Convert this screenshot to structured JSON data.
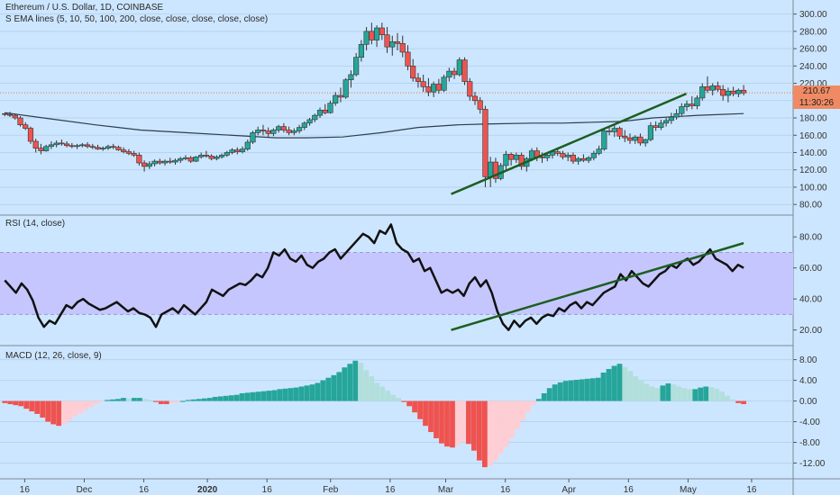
{
  "header": {
    "symbol_title": "Ethereum / U.S. Dollar, 1D, COINBASE",
    "ema_legend": "S EMA lines (5, 10, 50, 100, 200, close, close, close, close, close)",
    "rsi_legend": "RSI (14, close)",
    "macd_legend": "MACD (12, 26, close, 9)"
  },
  "price_badges": {
    "last_price": "210.67",
    "countdown": "11:30:26"
  },
  "colors": {
    "background": "#cde6ff",
    "up": "#26a69a",
    "down": "#ef5350",
    "trendline": "#1b5e20",
    "rsi_band": "#c6c6ff",
    "macd_neg_light": "#ffcdd2",
    "macd_pos_light": "#b2dfdb"
  },
  "x_axis_labels": [
    "16",
    "Dec",
    "16",
    "2020",
    "16",
    "Feb",
    "16",
    "Mar",
    "16",
    "Apr",
    "16",
    "May",
    "16"
  ],
  "chart_data": [
    {
      "type": "candlestick",
      "title": "Ethereum / U.S. Dollar, 1D, COINBASE",
      "y_ticks": [
        "300.00",
        "280.00",
        "260.00",
        "240.00",
        "220.00",
        "200.00",
        "180.00",
        "160.00",
        "140.00",
        "120.00",
        "100.00",
        "80.00"
      ],
      "ylim": [
        75,
        310
      ],
      "x_start": "2019-11-11",
      "x_days": 186,
      "ohlc": [
        [
          185,
          186,
          182,
          184
        ],
        [
          184,
          187,
          181,
          183
        ],
        [
          183,
          185,
          178,
          180
        ],
        [
          180,
          182,
          170,
          172
        ],
        [
          172,
          175,
          166,
          168
        ],
        [
          168,
          170,
          150,
          153
        ],
        [
          153,
          156,
          140,
          145
        ],
        [
          145,
          150,
          138,
          142
        ],
        [
          142,
          149,
          141,
          147
        ],
        [
          147,
          153,
          144,
          149
        ],
        [
          149,
          154,
          146,
          151
        ],
        [
          151,
          155,
          148,
          150
        ],
        [
          150,
          153,
          146,
          148
        ],
        [
          148,
          151,
          145,
          147
        ],
        [
          147,
          150,
          144,
          148
        ],
        [
          148,
          151,
          146,
          149
        ],
        [
          149,
          152,
          145,
          147
        ],
        [
          147,
          150,
          144,
          146
        ],
        [
          146,
          149,
          143,
          144
        ],
        [
          144,
          147,
          142,
          145
        ],
        [
          145,
          149,
          143,
          147
        ],
        [
          147,
          150,
          144,
          146
        ],
        [
          146,
          148,
          142,
          143
        ],
        [
          143,
          146,
          139,
          141
        ],
        [
          141,
          144,
          137,
          139
        ],
        [
          139,
          142,
          135,
          137
        ],
        [
          137,
          140,
          125,
          128
        ],
        [
          128,
          131,
          118,
          124
        ],
        [
          124,
          130,
          121,
          127
        ],
        [
          127,
          132,
          124,
          130
        ],
        [
          130,
          133,
          126,
          128
        ],
        [
          128,
          132,
          125,
          130
        ],
        [
          130,
          134,
          127,
          129
        ],
        [
          129,
          133,
          126,
          131
        ],
        [
          131,
          135,
          128,
          133
        ],
        [
          133,
          137,
          131,
          134
        ],
        [
          134,
          136,
          128,
          130
        ],
        [
          130,
          136,
          129,
          135
        ],
        [
          135,
          140,
          133,
          137
        ],
        [
          137,
          142,
          134,
          136
        ],
        [
          136,
          138,
          131,
          133
        ],
        [
          133,
          137,
          131,
          135
        ],
        [
          135,
          139,
          133,
          137
        ],
        [
          137,
          142,
          135,
          140
        ],
        [
          140,
          145,
          138,
          143
        ],
        [
          143,
          146,
          138,
          141
        ],
        [
          141,
          147,
          139,
          144
        ],
        [
          144,
          155,
          142,
          152
        ],
        [
          152,
          165,
          150,
          163
        ],
        [
          163,
          170,
          160,
          166
        ],
        [
          166,
          172,
          160,
          165
        ],
        [
          165,
          169,
          158,
          162
        ],
        [
          162,
          168,
          159,
          166
        ],
        [
          166,
          172,
          163,
          170
        ],
        [
          170,
          174,
          163,
          166
        ],
        [
          166,
          170,
          160,
          163
        ],
        [
          163,
          168,
          160,
          165
        ],
        [
          165,
          172,
          162,
          169
        ],
        [
          169,
          176,
          166,
          174
        ],
        [
          174,
          180,
          171,
          178
        ],
        [
          178,
          185,
          175,
          183
        ],
        [
          183,
          192,
          180,
          189
        ],
        [
          189,
          196,
          184,
          186
        ],
        [
          186,
          200,
          185,
          197
        ],
        [
          197,
          210,
          194,
          206
        ],
        [
          206,
          215,
          198,
          204
        ],
        [
          204,
          226,
          202,
          224
        ],
        [
          224,
          235,
          215,
          230
        ],
        [
          230,
          255,
          228,
          250
        ],
        [
          250,
          270,
          245,
          265
        ],
        [
          265,
          285,
          258,
          280
        ],
        [
          280,
          290,
          265,
          270
        ],
        [
          270,
          287,
          262,
          284
        ],
        [
          284,
          290,
          270,
          276
        ],
        [
          276,
          285,
          255,
          262
        ],
        [
          262,
          275,
          252,
          268
        ],
        [
          268,
          278,
          258,
          266
        ],
        [
          266,
          275,
          250,
          256
        ],
        [
          256,
          264,
          235,
          240
        ],
        [
          240,
          248,
          222,
          226
        ],
        [
          226,
          232,
          215,
          222
        ],
        [
          222,
          230,
          210,
          216
        ],
        [
          216,
          226,
          205,
          210
        ],
        [
          210,
          222,
          204,
          219
        ],
        [
          219,
          225,
          208,
          212
        ],
        [
          212,
          230,
          210,
          227
        ],
        [
          227,
          238,
          222,
          234
        ],
        [
          234,
          238,
          225,
          230
        ],
        [
          230,
          250,
          228,
          247
        ],
        [
          247,
          250,
          218,
          222
        ],
        [
          222,
          226,
          200,
          205
        ],
        [
          205,
          210,
          195,
          200
        ],
        [
          200,
          204,
          185,
          190
        ],
        [
          190,
          194,
          100,
          112
        ],
        [
          112,
          135,
          100,
          129
        ],
        [
          129,
          134,
          105,
          110
        ],
        [
          110,
          128,
          108,
          125
        ],
        [
          125,
          142,
          120,
          138
        ],
        [
          138,
          140,
          125,
          132
        ],
        [
          132,
          140,
          128,
          137
        ],
        [
          137,
          140,
          120,
          124
        ],
        [
          124,
          135,
          118,
          133
        ],
        [
          133,
          145,
          130,
          142
        ],
        [
          142,
          146,
          130,
          135
        ],
        [
          135,
          140,
          128,
          134
        ],
        [
          134,
          140,
          130,
          137
        ],
        [
          137,
          143,
          133,
          141
        ],
        [
          141,
          146,
          136,
          139
        ],
        [
          139,
          142,
          132,
          135
        ],
        [
          135,
          140,
          130,
          137
        ],
        [
          137,
          140,
          127,
          130
        ],
        [
          130,
          135,
          126,
          133
        ],
        [
          133,
          138,
          129,
          131
        ],
        [
          131,
          136,
          128,
          134
        ],
        [
          134,
          142,
          131,
          139
        ],
        [
          139,
          148,
          137,
          144
        ],
        [
          144,
          168,
          142,
          165
        ],
        [
          165,
          170,
          160,
          164
        ],
        [
          164,
          172,
          158,
          168
        ],
        [
          168,
          170,
          155,
          159
        ],
        [
          159,
          166,
          152,
          157
        ],
        [
          157,
          162,
          150,
          154
        ],
        [
          154,
          160,
          150,
          158
        ],
        [
          158,
          162,
          148,
          151
        ],
        [
          151,
          156,
          147,
          155
        ],
        [
          155,
          175,
          153,
          171
        ],
        [
          171,
          176,
          165,
          169
        ],
        [
          169,
          178,
          166,
          174
        ],
        [
          174,
          180,
          170,
          177
        ],
        [
          177,
          186,
          173,
          181
        ],
        [
          181,
          190,
          178,
          185
        ],
        [
          185,
          197,
          182,
          193
        ],
        [
          193,
          200,
          188,
          196
        ],
        [
          196,
          205,
          190,
          194
        ],
        [
          194,
          206,
          190,
          203
        ],
        [
          203,
          220,
          200,
          216
        ],
        [
          216,
          228,
          209,
          212
        ],
        [
          212,
          220,
          206,
          217
        ],
        [
          217,
          222,
          210,
          213
        ],
        [
          213,
          218,
          200,
          206
        ],
        [
          206,
          215,
          198,
          211
        ],
        [
          211,
          216,
          205,
          208
        ],
        [
          208,
          214,
          204,
          212
        ],
        [
          212,
          218,
          206,
          209
        ]
      ],
      "ema_200": [
        [
          0,
          186
        ],
        [
          15,
          179
        ],
        [
          30,
          172
        ],
        [
          45,
          166
        ],
        [
          60,
          163
        ],
        [
          75,
          160
        ],
        [
          90,
          157
        ],
        [
          100,
          157
        ],
        [
          112,
          158
        ],
        [
          125,
          163
        ],
        [
          137,
          169
        ],
        [
          150,
          172
        ],
        [
          160,
          173
        ],
        [
          175,
          174
        ],
        [
          185,
          174
        ],
        [
          195,
          175
        ],
        [
          205,
          176
        ],
        [
          215,
          180
        ],
        [
          230,
          183
        ],
        [
          245,
          185
        ]
      ],
      "trendline": {
        "x": [
          148,
          226
        ],
        "y": [
          92,
          208
        ]
      }
    },
    {
      "type": "line",
      "title": "RSI (14, close)",
      "y_ticks": [
        "80.00",
        "60.00",
        "40.00",
        "20.00"
      ],
      "ylim": [
        14,
        90
      ],
      "band": [
        30,
        70
      ],
      "values": [
        52,
        48,
        44,
        50,
        46,
        39,
        28,
        22,
        26,
        24,
        30,
        36,
        34,
        38,
        40,
        37,
        35,
        33,
        34,
        36,
        38,
        35,
        32,
        34,
        31,
        30,
        28,
        22,
        30,
        32,
        34,
        31,
        36,
        33,
        30,
        34,
        38,
        46,
        44,
        42,
        46,
        48,
        50,
        49,
        52,
        56,
        54,
        60,
        70,
        68,
        72,
        66,
        64,
        68,
        62,
        60,
        64,
        66,
        70,
        72,
        66,
        70,
        74,
        78,
        82,
        80,
        76,
        84,
        82,
        88,
        76,
        72,
        70,
        64,
        66,
        58,
        60,
        52,
        44,
        46,
        44,
        46,
        42,
        50,
        54,
        48,
        52,
        44,
        32,
        24,
        20,
        26,
        22,
        26,
        28,
        24,
        28,
        30,
        29,
        34,
        32,
        36,
        38,
        34,
        38,
        36,
        40,
        44,
        46,
        48,
        56,
        52,
        58,
        54,
        50,
        48,
        52,
        56,
        58,
        62,
        60,
        64,
        66,
        62,
        64,
        68,
        72,
        66,
        64,
        62,
        58,
        62,
        60
      ],
      "trendline": {
        "x": [
          148,
          245
        ],
        "y": [
          20,
          76
        ]
      }
    },
    {
      "type": "bar",
      "title": "MACD (12, 26, close, 9)",
      "y_ticks": [
        "8.00",
        "4.00",
        "0.00",
        "-4.00",
        "-8.00",
        "-12.00"
      ],
      "ylim": [
        -14,
        9.5
      ],
      "histogram": [
        -0.4,
        -0.6,
        -0.8,
        -1.0,
        -1.5,
        -2.0,
        -2.5,
        -3.2,
        -4.0,
        -4.5,
        -4.8,
        -4.5,
        -3.8,
        -3.0,
        -2.4,
        -1.8,
        -1.2,
        -0.6,
        -0.2,
        0.2,
        0.3,
        0.4,
        0.6,
        0.5,
        0.6,
        0.6,
        0.4,
        0.2,
        -0.2,
        -0.6,
        -0.6,
        -0.4,
        -0.3,
        0.0,
        0.2,
        0.3,
        0.4,
        0.5,
        0.6,
        0.8,
        0.9,
        1.0,
        1.1,
        1.2,
        1.5,
        1.6,
        1.7,
        1.8,
        1.9,
        2.0,
        2.1,
        2.3,
        2.4,
        2.5,
        2.6,
        2.8,
        3.0,
        3.2,
        3.5,
        4.0,
        4.5,
        5.0,
        5.6,
        6.5,
        7.2,
        7.8,
        7.4,
        6.0,
        4.8,
        3.5,
        2.8,
        2.0,
        1.2,
        0.6,
        -0.2,
        -1.0,
        -2.2,
        -3.5,
        -4.8,
        -6.0,
        -7.2,
        -8.2,
        -8.8,
        -9.0,
        -8.6,
        -7.8,
        -8.3,
        -9.6,
        -11.5,
        -12.8,
        -12.5,
        -11.5,
        -10.2,
        -8.8,
        -7.2,
        -5.5,
        -3.8,
        -2.2,
        -0.8,
        0.4,
        1.5,
        2.5,
        3.2,
        3.6,
        3.9,
        4.0,
        4.1,
        4.2,
        4.3,
        4.4,
        4.5,
        5.5,
        6.2,
        6.8,
        7.2,
        6.6,
        5.8,
        4.8,
        3.9,
        3.3,
        2.8,
        2.5,
        3.0,
        3.4,
        3.2,
        2.8,
        2.5,
        2.3,
        2.3,
        2.6,
        2.8,
        2.7,
        2.4,
        1.8,
        1.0,
        0.3,
        -0.4,
        -0.6
      ],
      "histogram_start_day": 0
    }
  ]
}
